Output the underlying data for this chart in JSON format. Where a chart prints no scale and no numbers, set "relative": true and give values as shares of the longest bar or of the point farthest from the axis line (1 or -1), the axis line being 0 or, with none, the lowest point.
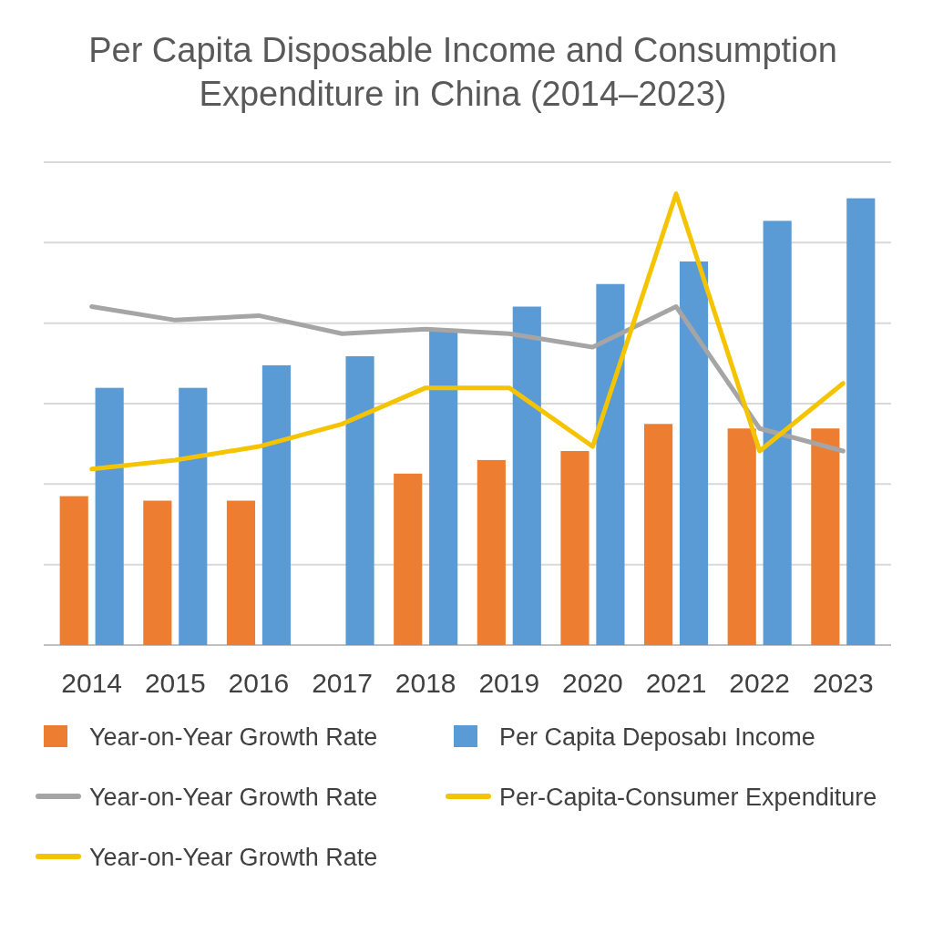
{
  "chart_data": {
    "type": "bar",
    "title": "Per Capita Disposable Income and Consumption Expenditure in China (2014–2023)",
    "categories": [
      "2014",
      "2015",
      "2016",
      "2017",
      "2018",
      "2019",
      "2020",
      "2021",
      "2022",
      "2023"
    ],
    "relative": true,
    "grid": true,
    "legend": "bottom",
    "series": [
      {
        "name": "Year-on-Year Growth Rate",
        "color": "#ed7d31",
        "values": [
          0.33,
          0.32,
          0.32,
          null,
          0.38,
          0.41,
          0.43,
          0.49,
          0.48,
          0.48
        ]
      },
      {
        "name": "Per Capita Deposabı Income",
        "color": "#5b9bd5",
        "values": [
          0.57,
          0.57,
          0.62,
          0.64,
          0.7,
          0.75,
          0.8,
          0.85,
          0.94,
          0.99
        ]
      },
      {
        "name": "Year-on-Year Growth Rate",
        "type": "line",
        "color": "#a5a5a5",
        "values": [
          0.75,
          0.72,
          0.73,
          0.69,
          0.7,
          0.69,
          0.66,
          0.75,
          0.48,
          0.43
        ]
      },
      {
        "name": "Per-Capita-Consumer Expenditure",
        "type": "line",
        "color": "#f5c400",
        "values": [
          0.39,
          0.41,
          0.44,
          0.49,
          0.57,
          0.57,
          0.44,
          1,
          0.43,
          0.58
        ]
      },
      {
        "name": "Year-on-Year Growth Rate",
        "type": "line",
        "color": "#f5c400",
        "values": [
          null,
          null,
          null,
          null,
          null,
          null,
          null,
          null,
          null,
          null
        ]
      }
    ]
  }
}
